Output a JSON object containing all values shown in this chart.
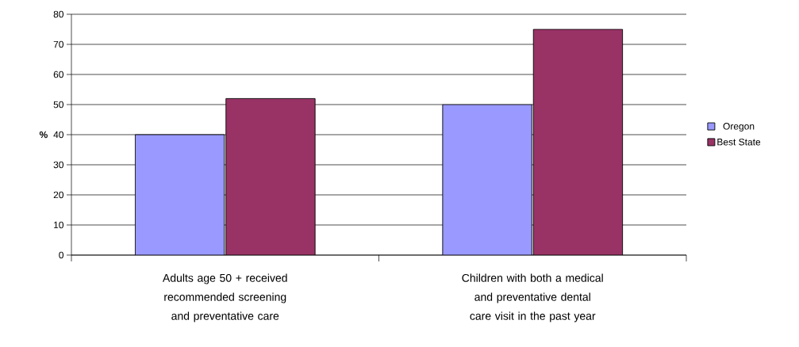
{
  "chart_data": {
    "type": "bar",
    "ylabel": "%",
    "categories": [
      "Adults age 50 + received recommended screening and preventative care",
      "Children with both a medical and preventative dental care visit in the past year"
    ],
    "series": [
      {
        "name": "Oregon",
        "color": "#9999ff",
        "values": [
          40,
          50
        ]
      },
      {
        "name": "Best State",
        "color": "#993366",
        "values": [
          52,
          75
        ]
      }
    ],
    "ylim": [
      0,
      80
    ],
    "yticks": [
      0,
      10,
      20,
      30,
      40,
      50,
      60,
      70,
      80
    ],
    "grid": "y",
    "legend": "right"
  }
}
